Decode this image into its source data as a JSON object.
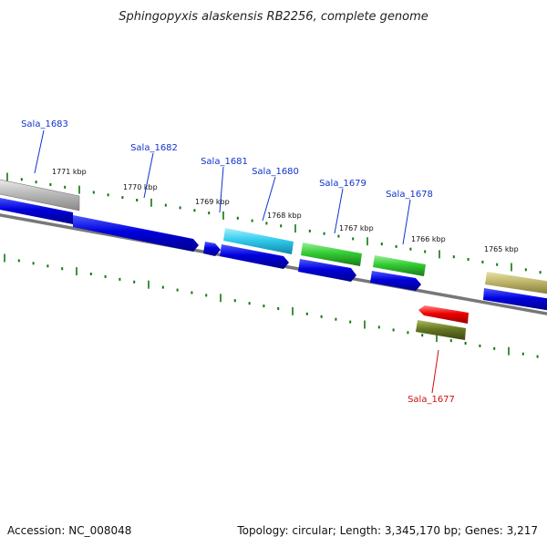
{
  "title": "Sphingopyxis alaskensis RB2256, complete genome",
  "footer": {
    "accession": "Accession: NC_008048",
    "summary": "Topology: circular; Length: 3,345,170 bp; Genes: 3,217"
  },
  "colors": {
    "blue_gene": "#0000dd",
    "cyan_gene": "#33ccee",
    "green_gene": "#33cc33",
    "olive_gene": "#bfb56a",
    "red_gene": "#ee0000",
    "darkolive_gene": "#667722",
    "grey_gene": "#bbbbbb",
    "backbone": "#777777",
    "tick": "#117711",
    "label_blue": "#1133cc",
    "label_red": "#cc1111"
  },
  "scale_ticks": [
    {
      "label": "1771 kbp"
    },
    {
      "label": "1770 kbp"
    },
    {
      "label": "1769 kbp"
    },
    {
      "label": "1768 kbp"
    },
    {
      "label": "1767 kbp"
    },
    {
      "label": "1766 kbp"
    },
    {
      "label": "1765 kbp"
    }
  ],
  "gene_labels": [
    {
      "text": "Sala_1683"
    },
    {
      "text": "Sala_1682"
    },
    {
      "text": "Sala_1681"
    },
    {
      "text": "Sala_1680"
    },
    {
      "text": "Sala_1679"
    },
    {
      "text": "Sala_1678"
    },
    {
      "text": "Sala_1677"
    }
  ]
}
